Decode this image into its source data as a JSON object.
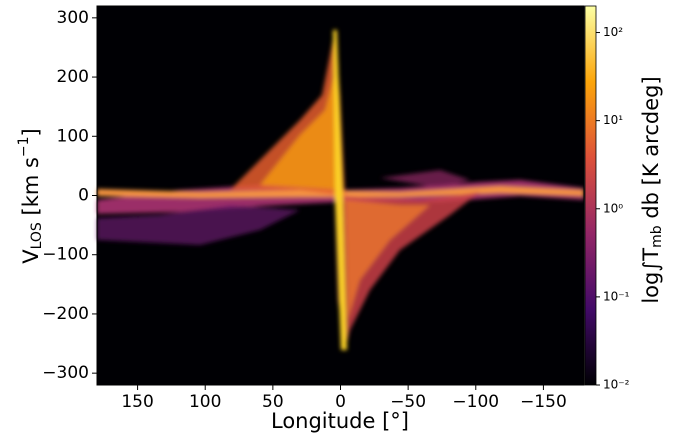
{
  "chart_data": {
    "type": "heatmap",
    "xlabel": {
      "main": "Longitude [°]"
    },
    "ylabel": {
      "main": "V",
      "sub": "LOS",
      "unit": " [km s",
      "sup": "−1",
      "end": "]"
    },
    "colorbar_label": {
      "main": "log∫T",
      "sub": "mb",
      "end": " db [K arcdeg]"
    },
    "xlim": [
      180,
      -180
    ],
    "xticks": [
      150,
      100,
      50,
      0,
      {
        "value": -50,
        "label": "−50"
      },
      {
        "value": -100,
        "label": "−100"
      },
      {
        "value": -150,
        "label": "−150"
      }
    ],
    "ylim": [
      -320,
      320
    ],
    "yticks": [
      {
        "value": -300,
        "label": "−300"
      },
      {
        "value": -200,
        "label": "−200"
      },
      {
        "value": -100,
        "label": "−100"
      },
      0,
      100,
      200,
      300
    ],
    "colorbar_lim": [
      0.01,
      200
    ],
    "colorbar_log": true,
    "colorbar_ticks": [
      {
        "value": 0.01,
        "label": "10⁻²"
      },
      {
        "value": 0.1,
        "label": "10⁻¹"
      },
      {
        "value": 1,
        "label": "10⁰"
      },
      {
        "value": 10,
        "label": "10¹"
      },
      {
        "value": 100,
        "label": "10²"
      }
    ],
    "colormap": [
      "#000004",
      "#420a68",
      "#932667",
      "#dd513a",
      "#fca50a",
      "#fcffa4"
    ]
  }
}
